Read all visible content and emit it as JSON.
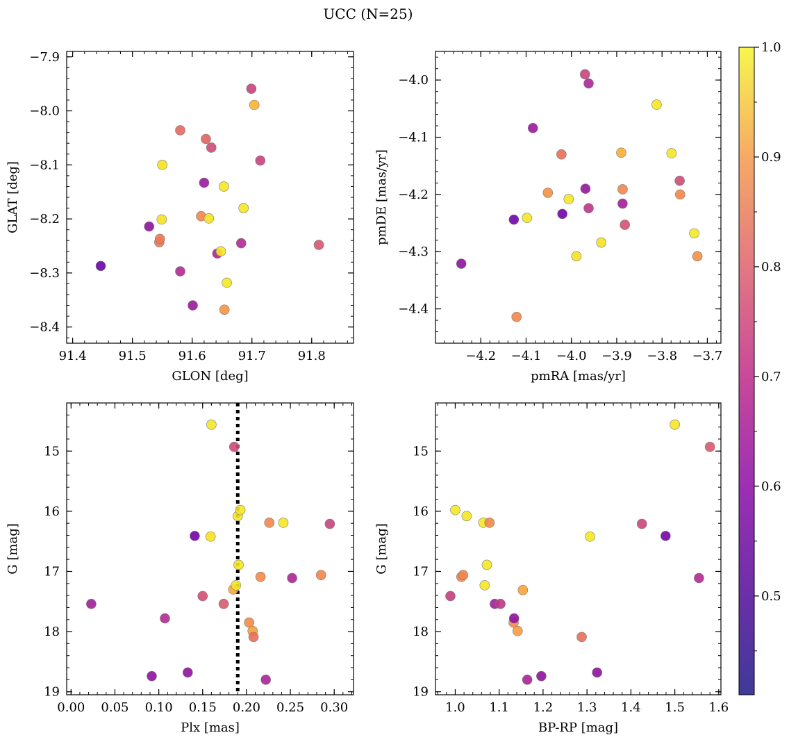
{
  "figure": {
    "title": "UCC (N=25)"
  },
  "colorbar": {
    "cmap": "plasma",
    "range": [
      0.41,
      1.0
    ],
    "ticks": [
      0.5,
      0.6,
      0.7,
      0.8,
      0.9,
      1.0
    ],
    "tick_labels": [
      "0.5",
      "0.6",
      "0.7",
      "0.8",
      "0.9",
      "1.0"
    ]
  },
  "chart_data": [
    {
      "type": "scatter",
      "xlabel": "GLON [deg]",
      "ylabel": "GLAT [deg]",
      "xlim": [
        91.39,
        91.87
      ],
      "ylim": [
        -8.43,
        -7.89
      ],
      "xticks": [
        91.4,
        91.5,
        91.6,
        91.7,
        91.8
      ],
      "xtick_labels": [
        "91.4",
        "91.5",
        "91.6",
        "91.7",
        "91.8"
      ],
      "yticks": [
        -7.9,
        -8.0,
        -8.1,
        -8.2,
        -8.3,
        -8.4
      ],
      "ytick_labels": [
        "−7.9",
        "−8.0",
        "−8.1",
        "−8.2",
        "−8.3",
        "−8.4"
      ],
      "points": [
        {
          "x": 91.447,
          "y": -8.287,
          "c": 0.43
        },
        {
          "x": 91.528,
          "y": -8.214,
          "c": 0.5
        },
        {
          "x": 91.545,
          "y": -8.243,
          "c": 0.76
        },
        {
          "x": 91.546,
          "y": -8.237,
          "c": 0.76
        },
        {
          "x": 91.549,
          "y": -8.201,
          "c": 0.96
        },
        {
          "x": 91.55,
          "y": -8.1,
          "c": 0.96
        },
        {
          "x": 91.58,
          "y": -8.036,
          "c": 0.72
        },
        {
          "x": 91.58,
          "y": -8.297,
          "c": 0.57
        },
        {
          "x": 91.601,
          "y": -8.36,
          "c": 0.52
        },
        {
          "x": 91.615,
          "y": -8.195,
          "c": 0.79
        },
        {
          "x": 91.62,
          "y": -8.133,
          "c": 0.52
        },
        {
          "x": 91.623,
          "y": -8.052,
          "c": 0.71
        },
        {
          "x": 91.628,
          "y": -8.199,
          "c": 0.96
        },
        {
          "x": 91.632,
          "y": -8.068,
          "c": 0.65
        },
        {
          "x": 91.642,
          "y": -8.264,
          "c": 0.56
        },
        {
          "x": 91.648,
          "y": -8.26,
          "c": 0.97
        },
        {
          "x": 91.653,
          "y": -8.14,
          "c": 0.97
        },
        {
          "x": 91.654,
          "y": -8.368,
          "c": 0.82
        },
        {
          "x": 91.658,
          "y": -8.318,
          "c": 0.97
        },
        {
          "x": 91.682,
          "y": -8.245,
          "c": 0.57
        },
        {
          "x": 91.686,
          "y": -8.18,
          "c": 0.97
        },
        {
          "x": 91.699,
          "y": -7.959,
          "c": 0.63
        },
        {
          "x": 91.704,
          "y": -7.989,
          "c": 0.88
        },
        {
          "x": 91.714,
          "y": -8.092,
          "c": 0.63
        },
        {
          "x": 91.812,
          "y": -8.248,
          "c": 0.68
        }
      ]
    },
    {
      "type": "scatter",
      "xlabel": "pmRA [mas/yr]",
      "ylabel": "pmDE [mas/yr]",
      "xlim": [
        -4.3,
        -3.67
      ],
      "ylim": [
        -4.46,
        -3.95
      ],
      "xticks": [
        -4.2,
        -4.1,
        -4.0,
        -3.9,
        -3.8,
        -3.7
      ],
      "xtick_labels": [
        "−4.2",
        "−4.1",
        "−4.0",
        "−3.9",
        "−3.8",
        "−3.7"
      ],
      "yticks": [
        -4.0,
        -4.1,
        -4.2,
        -4.3,
        -4.4
      ],
      "ytick_labels": [
        "−4.0",
        "−4.1",
        "−4.2",
        "−4.3",
        "−4.4"
      ],
      "points": [
        {
          "x": -4.243,
          "y": -4.321,
          "c": 0.5
        },
        {
          "x": -4.127,
          "y": -4.244,
          "c": 0.44
        },
        {
          "x": -4.121,
          "y": -4.414,
          "c": 0.79
        },
        {
          "x": -4.098,
          "y": -4.241,
          "c": 0.97
        },
        {
          "x": -4.085,
          "y": -4.084,
          "c": 0.52
        },
        {
          "x": -4.052,
          "y": -4.197,
          "c": 0.81
        },
        {
          "x": -4.022,
          "y": -4.13,
          "c": 0.74
        },
        {
          "x": -4.02,
          "y": -4.234,
          "c": 0.44
        },
        {
          "x": -4.006,
          "y": -4.208,
          "c": 0.97
        },
        {
          "x": -3.989,
          "y": -4.308,
          "c": 0.96
        },
        {
          "x": -3.97,
          "y": -3.99,
          "c": 0.63
        },
        {
          "x": -3.969,
          "y": -4.19,
          "c": 0.51
        },
        {
          "x": -3.962,
          "y": -4.006,
          "c": 0.56
        },
        {
          "x": -3.962,
          "y": -4.224,
          "c": 0.6
        },
        {
          "x": -3.934,
          "y": -4.284,
          "c": 0.96
        },
        {
          "x": -3.89,
          "y": -4.127,
          "c": 0.87
        },
        {
          "x": -3.887,
          "y": -4.191,
          "c": 0.79
        },
        {
          "x": -3.887,
          "y": -4.216,
          "c": 0.54
        },
        {
          "x": -3.882,
          "y": -4.253,
          "c": 0.67
        },
        {
          "x": -3.812,
          "y": -4.043,
          "c": 0.97
        },
        {
          "x": -3.779,
          "y": -4.128,
          "c": 0.97
        },
        {
          "x": -3.761,
          "y": -4.176,
          "c": 0.65
        },
        {
          "x": -3.76,
          "y": -4.2,
          "c": 0.79
        },
        {
          "x": -3.729,
          "y": -4.268,
          "c": 0.97
        },
        {
          "x": -3.722,
          "y": -4.308,
          "c": 0.81
        }
      ]
    },
    {
      "type": "scatter",
      "xlabel": "Plx [mas]",
      "ylabel": "G [mag]",
      "xlim": [
        -0.005,
        0.322
      ],
      "ylim": [
        19.05,
        14.2
      ],
      "xticks": [
        0.0,
        0.05,
        0.1,
        0.15,
        0.2,
        0.25,
        0.3
      ],
      "xtick_labels": [
        "0.00",
        "0.05",
        "0.10",
        "0.15",
        "0.20",
        "0.25",
        "0.30"
      ],
      "yticks": [
        15,
        16,
        17,
        18,
        19
      ],
      "ytick_labels": [
        "15",
        "16",
        "17",
        "18",
        "19"
      ],
      "vline": {
        "x": 0.19,
        "style": "dotted",
        "color": "#000000"
      },
      "points": [
        {
          "x": 0.023,
          "y": 17.54,
          "c": 0.54
        },
        {
          "x": 0.092,
          "y": 18.74,
          "c": 0.5
        },
        {
          "x": 0.107,
          "y": 17.78,
          "c": 0.57
        },
        {
          "x": 0.133,
          "y": 18.68,
          "c": 0.5
        },
        {
          "x": 0.141,
          "y": 16.41,
          "c": 0.44
        },
        {
          "x": 0.15,
          "y": 17.41,
          "c": 0.66
        },
        {
          "x": 0.159,
          "y": 16.42,
          "c": 0.96
        },
        {
          "x": 0.16,
          "y": 14.56,
          "c": 0.97
        },
        {
          "x": 0.174,
          "y": 17.54,
          "c": 0.69
        },
        {
          "x": 0.185,
          "y": 17.3,
          "c": 0.86
        },
        {
          "x": 0.186,
          "y": 14.93,
          "c": 0.65
        },
        {
          "x": 0.188,
          "y": 17.23,
          "c": 0.97
        },
        {
          "x": 0.19,
          "y": 16.08,
          "c": 0.97
        },
        {
          "x": 0.191,
          "y": 16.89,
          "c": 0.97
        },
        {
          "x": 0.193,
          "y": 15.98,
          "c": 0.97
        },
        {
          "x": 0.203,
          "y": 17.85,
          "c": 0.8
        },
        {
          "x": 0.207,
          "y": 17.99,
          "c": 0.84
        },
        {
          "x": 0.208,
          "y": 18.09,
          "c": 0.74
        },
        {
          "x": 0.216,
          "y": 17.09,
          "c": 0.8
        },
        {
          "x": 0.222,
          "y": 18.8,
          "c": 0.55
        },
        {
          "x": 0.226,
          "y": 16.19,
          "c": 0.79
        },
        {
          "x": 0.242,
          "y": 16.19,
          "c": 0.97
        },
        {
          "x": 0.252,
          "y": 17.11,
          "c": 0.56
        },
        {
          "x": 0.285,
          "y": 17.06,
          "c": 0.79
        },
        {
          "x": 0.295,
          "y": 16.21,
          "c": 0.63
        }
      ]
    },
    {
      "type": "scatter",
      "xlabel": "BP-RP [mag]",
      "ylabel": "G [mag]",
      "xlim": [
        0.955,
        1.605
      ],
      "ylim": [
        19.05,
        14.2
      ],
      "xticks": [
        1.0,
        1.1,
        1.2,
        1.3,
        1.4,
        1.5,
        1.6
      ],
      "xtick_labels": [
        "1.0",
        "1.1",
        "1.2",
        "1.3",
        "1.4",
        "1.5",
        "1.6"
      ],
      "yticks": [
        15,
        16,
        17,
        18,
        19
      ],
      "ytick_labels": [
        "15",
        "16",
        "17",
        "18",
        "19"
      ],
      "points": [
        {
          "x": 0.989,
          "y": 17.41,
          "c": 0.62
        },
        {
          "x": 1.0,
          "y": 15.98,
          "c": 0.97
        },
        {
          "x": 1.014,
          "y": 17.09,
          "c": 0.79
        },
        {
          "x": 1.018,
          "y": 17.06,
          "c": 0.79
        },
        {
          "x": 1.026,
          "y": 16.08,
          "c": 0.97
        },
        {
          "x": 1.064,
          "y": 16.19,
          "c": 0.97
        },
        {
          "x": 1.067,
          "y": 17.23,
          "c": 0.97
        },
        {
          "x": 1.072,
          "y": 16.89,
          "c": 0.97
        },
        {
          "x": 1.078,
          "y": 16.19,
          "c": 0.79
        },
        {
          "x": 1.09,
          "y": 17.54,
          "c": 0.54
        },
        {
          "x": 1.103,
          "y": 17.54,
          "c": 0.6
        },
        {
          "x": 1.133,
          "y": 17.85,
          "c": 0.8
        },
        {
          "x": 1.134,
          "y": 17.78,
          "c": 0.5
        },
        {
          "x": 1.142,
          "y": 17.99,
          "c": 0.83
        },
        {
          "x": 1.154,
          "y": 17.31,
          "c": 0.85
        },
        {
          "x": 1.164,
          "y": 18.8,
          "c": 0.55
        },
        {
          "x": 1.196,
          "y": 18.74,
          "c": 0.5
        },
        {
          "x": 1.288,
          "y": 18.09,
          "c": 0.74
        },
        {
          "x": 1.307,
          "y": 16.42,
          "c": 0.97
        },
        {
          "x": 1.323,
          "y": 18.68,
          "c": 0.5
        },
        {
          "x": 1.425,
          "y": 16.21,
          "c": 0.64
        },
        {
          "x": 1.479,
          "y": 16.41,
          "c": 0.45
        },
        {
          "x": 1.5,
          "y": 14.56,
          "c": 0.97
        },
        {
          "x": 1.555,
          "y": 17.11,
          "c": 0.57
        },
        {
          "x": 1.58,
          "y": 14.93,
          "c": 0.69
        }
      ]
    }
  ]
}
